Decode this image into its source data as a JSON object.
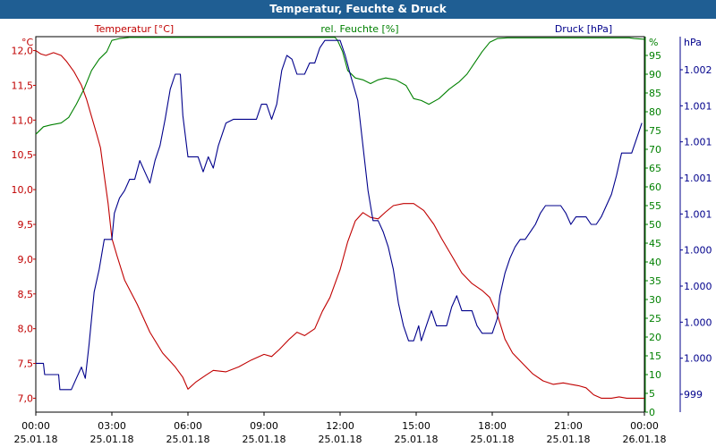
{
  "window": {
    "title": "Temperatur, Feuchte & Druck"
  },
  "colors": {
    "temperature": "#c00000",
    "humidity": "#008000",
    "pressure": "#00008b",
    "title_bar": "#1f5e93"
  },
  "chart_data": {
    "type": "line",
    "title": "Temperatur, Feuchte & Druck",
    "grid": true,
    "x_ticks": [
      {
        "time": "00:00",
        "date": "25.01.18"
      },
      {
        "time": "03:00",
        "date": "25.01.18"
      },
      {
        "time": "06:00",
        "date": "25.01.18"
      },
      {
        "time": "09:00",
        "date": "25.01.18"
      },
      {
        "time": "12:00",
        "date": "25.01.18"
      },
      {
        "time": "15:00",
        "date": "25.01.18"
      },
      {
        "time": "18:00",
        "date": "25.01.18"
      },
      {
        "time": "21:00",
        "date": "25.01.18"
      },
      {
        "time": "00:00",
        "date": "26.01.18"
      }
    ],
    "x_range_hours": [
      0,
      24
    ],
    "axes": {
      "temperature": {
        "label": "Temperatur [°C]",
        "unit": "°C",
        "range": [
          6.8,
          12.2
        ],
        "ticks": [
          "12,0",
          "11,5",
          "11,0",
          "10,5",
          "10,0",
          "9,5",
          "9,0",
          "8,5",
          "8,0",
          "7,5",
          "7,0"
        ]
      },
      "humidity": {
        "label": "rel. Feuchte [%]",
        "unit": "%",
        "range": [
          0,
          100
        ],
        "ticks": [
          "95",
          "90",
          "85",
          "80",
          "75",
          "70",
          "65",
          "60",
          "55",
          "50",
          "45",
          "40",
          "35",
          "30",
          "25",
          "20",
          "15",
          "10",
          "5",
          "0"
        ]
      },
      "pressure": {
        "label": "Druck [hPa]",
        "unit": "hPa",
        "range": [
          0,
          100
        ],
        "ticks": [
          "1.002",
          "1.001",
          "1.001",
          "1.001",
          "1.001",
          "1.000",
          "1.000",
          "1.000",
          "1.000",
          "999"
        ]
      }
    },
    "series": [
      {
        "name": "Temperatur [°C]",
        "axis": "temperature",
        "points": [
          [
            0.0,
            12.0
          ],
          [
            0.2,
            11.95
          ],
          [
            0.4,
            11.93
          ],
          [
            0.7,
            11.97
          ],
          [
            1.0,
            11.93
          ],
          [
            1.2,
            11.85
          ],
          [
            1.5,
            11.7
          ],
          [
            1.8,
            11.5
          ],
          [
            2.0,
            11.3
          ],
          [
            2.2,
            11.05
          ],
          [
            2.4,
            10.8
          ],
          [
            2.55,
            10.6
          ],
          [
            2.7,
            10.2
          ],
          [
            2.85,
            9.8
          ],
          [
            3.0,
            9.3
          ],
          [
            3.2,
            9.05
          ],
          [
            3.5,
            8.7
          ],
          [
            4.0,
            8.35
          ],
          [
            4.5,
            7.95
          ],
          [
            5.0,
            7.65
          ],
          [
            5.5,
            7.45
          ],
          [
            5.8,
            7.3
          ],
          [
            6.0,
            7.13
          ],
          [
            6.3,
            7.23
          ],
          [
            6.7,
            7.33
          ],
          [
            7.0,
            7.4
          ],
          [
            7.5,
            7.38
          ],
          [
            8.0,
            7.45
          ],
          [
            8.5,
            7.55
          ],
          [
            9.0,
            7.63
          ],
          [
            9.3,
            7.6
          ],
          [
            9.6,
            7.7
          ],
          [
            10.0,
            7.85
          ],
          [
            10.3,
            7.95
          ],
          [
            10.6,
            7.9
          ],
          [
            11.0,
            8.0
          ],
          [
            11.3,
            8.25
          ],
          [
            11.6,
            8.45
          ],
          [
            12.0,
            8.85
          ],
          [
            12.3,
            9.25
          ],
          [
            12.6,
            9.55
          ],
          [
            12.9,
            9.67
          ],
          [
            13.2,
            9.6
          ],
          [
            13.5,
            9.58
          ],
          [
            13.8,
            9.68
          ],
          [
            14.1,
            9.77
          ],
          [
            14.5,
            9.8
          ],
          [
            14.9,
            9.8
          ],
          [
            15.3,
            9.7
          ],
          [
            15.7,
            9.5
          ],
          [
            16.0,
            9.3
          ],
          [
            16.4,
            9.05
          ],
          [
            16.8,
            8.8
          ],
          [
            17.2,
            8.65
          ],
          [
            17.6,
            8.55
          ],
          [
            17.9,
            8.45
          ],
          [
            18.2,
            8.2
          ],
          [
            18.5,
            7.85
          ],
          [
            18.8,
            7.65
          ],
          [
            19.2,
            7.5
          ],
          [
            19.6,
            7.35
          ],
          [
            20.0,
            7.25
          ],
          [
            20.4,
            7.2
          ],
          [
            20.8,
            7.22
          ],
          [
            21.1,
            7.2
          ],
          [
            21.4,
            7.18
          ],
          [
            21.7,
            7.15
          ],
          [
            22.0,
            7.05
          ],
          [
            22.3,
            7.0
          ],
          [
            22.7,
            7.0
          ],
          [
            23.0,
            7.02
          ],
          [
            23.3,
            7.0
          ],
          [
            23.7,
            7.0
          ],
          [
            24.0,
            7.0
          ]
        ]
      },
      {
        "name": "rel. Feuchte [%]",
        "axis": "humidity",
        "points": [
          [
            0.0,
            74
          ],
          [
            0.3,
            76
          ],
          [
            0.6,
            76.5
          ],
          [
            1.0,
            77
          ],
          [
            1.3,
            78.5
          ],
          [
            1.6,
            82
          ],
          [
            1.9,
            86
          ],
          [
            2.2,
            91
          ],
          [
            2.5,
            94
          ],
          [
            2.8,
            96
          ],
          [
            3.0,
            99
          ],
          [
            3.3,
            99.5
          ],
          [
            3.7,
            99.8
          ],
          [
            4.0,
            99.8
          ],
          [
            4.6,
            99.8
          ],
          [
            5.0,
            99.8
          ],
          [
            11.8,
            99.8
          ],
          [
            11.9,
            99
          ],
          [
            12.1,
            96
          ],
          [
            12.3,
            91
          ],
          [
            12.6,
            89
          ],
          [
            12.9,
            88.5
          ],
          [
            13.2,
            87.5
          ],
          [
            13.5,
            88.5
          ],
          [
            13.8,
            89
          ],
          [
            14.2,
            88.5
          ],
          [
            14.6,
            87
          ],
          [
            14.9,
            83.5
          ],
          [
            15.2,
            83
          ],
          [
            15.5,
            82
          ],
          [
            15.9,
            83.5
          ],
          [
            16.3,
            86
          ],
          [
            16.7,
            88
          ],
          [
            17.0,
            90
          ],
          [
            17.3,
            93
          ],
          [
            17.6,
            96
          ],
          [
            17.9,
            98.5
          ],
          [
            18.2,
            99.5
          ],
          [
            18.6,
            99.7
          ],
          [
            19.0,
            99.7
          ],
          [
            20.0,
            99.7
          ],
          [
            22.0,
            99.7
          ],
          [
            23.4,
            99.7
          ],
          [
            23.6,
            99.5
          ],
          [
            24.0,
            99.3
          ]
        ]
      },
      {
        "name": "Druck [hPa]",
        "axis": "pressure",
        "points": [
          [
            0.0,
            13
          ],
          [
            0.3,
            13
          ],
          [
            0.35,
            10
          ],
          [
            0.9,
            10
          ],
          [
            0.95,
            6
          ],
          [
            1.4,
            6
          ],
          [
            1.6,
            9
          ],
          [
            1.8,
            12
          ],
          [
            1.95,
            9
          ],
          [
            2.1,
            18
          ],
          [
            2.3,
            32
          ],
          [
            2.5,
            38
          ],
          [
            2.7,
            46
          ],
          [
            3.0,
            46
          ],
          [
            3.1,
            53
          ],
          [
            3.3,
            57
          ],
          [
            3.5,
            59
          ],
          [
            3.7,
            62
          ],
          [
            3.9,
            62
          ],
          [
            4.1,
            67
          ],
          [
            4.3,
            64
          ],
          [
            4.5,
            61
          ],
          [
            4.7,
            67
          ],
          [
            4.9,
            71
          ],
          [
            5.1,
            78
          ],
          [
            5.3,
            86
          ],
          [
            5.5,
            90
          ],
          [
            5.7,
            90
          ],
          [
            5.8,
            79
          ],
          [
            6.0,
            68
          ],
          [
            6.2,
            68
          ],
          [
            6.4,
            68
          ],
          [
            6.6,
            64
          ],
          [
            6.8,
            68
          ],
          [
            7.0,
            65
          ],
          [
            7.2,
            71
          ],
          [
            7.5,
            77
          ],
          [
            7.8,
            78
          ],
          [
            8.1,
            78
          ],
          [
            8.4,
            78
          ],
          [
            8.7,
            78
          ],
          [
            8.9,
            82
          ],
          [
            9.1,
            82
          ],
          [
            9.3,
            78
          ],
          [
            9.5,
            82
          ],
          [
            9.7,
            91
          ],
          [
            9.9,
            95
          ],
          [
            10.1,
            94
          ],
          [
            10.3,
            90
          ],
          [
            10.6,
            90
          ],
          [
            10.8,
            93
          ],
          [
            11.0,
            93
          ],
          [
            11.2,
            97
          ],
          [
            11.4,
            99
          ],
          [
            11.6,
            99
          ],
          [
            11.8,
            99
          ],
          [
            12.0,
            99
          ],
          [
            12.2,
            95
          ],
          [
            12.4,
            90
          ],
          [
            12.7,
            83
          ],
          [
            12.9,
            71
          ],
          [
            13.1,
            59
          ],
          [
            13.3,
            51
          ],
          [
            13.5,
            51
          ],
          [
            13.7,
            48
          ],
          [
            13.9,
            44
          ],
          [
            14.1,
            38
          ],
          [
            14.3,
            29
          ],
          [
            14.5,
            23
          ],
          [
            14.7,
            19
          ],
          [
            14.9,
            19
          ],
          [
            15.1,
            23
          ],
          [
            15.2,
            19
          ],
          [
            15.4,
            23
          ],
          [
            15.6,
            27
          ],
          [
            15.8,
            23
          ],
          [
            16.0,
            23
          ],
          [
            16.2,
            23
          ],
          [
            16.4,
            28
          ],
          [
            16.6,
            31
          ],
          [
            16.8,
            27
          ],
          [
            17.0,
            27
          ],
          [
            17.2,
            27
          ],
          [
            17.4,
            23
          ],
          [
            17.6,
            21
          ],
          [
            17.8,
            21
          ],
          [
            18.0,
            21
          ],
          [
            18.2,
            25
          ],
          [
            18.3,
            31
          ],
          [
            18.5,
            37
          ],
          [
            18.7,
            41
          ],
          [
            18.9,
            44
          ],
          [
            19.1,
            46
          ],
          [
            19.3,
            46
          ],
          [
            19.5,
            48
          ],
          [
            19.7,
            50
          ],
          [
            19.9,
            53
          ],
          [
            20.1,
            55
          ],
          [
            20.3,
            55
          ],
          [
            20.5,
            55
          ],
          [
            20.7,
            55
          ],
          [
            20.9,
            53
          ],
          [
            21.1,
            50
          ],
          [
            21.3,
            52
          ],
          [
            21.5,
            52
          ],
          [
            21.7,
            52
          ],
          [
            21.9,
            50
          ],
          [
            22.1,
            50
          ],
          [
            22.3,
            52
          ],
          [
            22.5,
            55
          ],
          [
            22.7,
            58
          ],
          [
            22.9,
            63
          ],
          [
            23.1,
            69
          ],
          [
            23.3,
            69
          ],
          [
            23.5,
            69
          ],
          [
            23.7,
            73
          ],
          [
            23.9,
            77
          ]
        ]
      }
    ]
  }
}
